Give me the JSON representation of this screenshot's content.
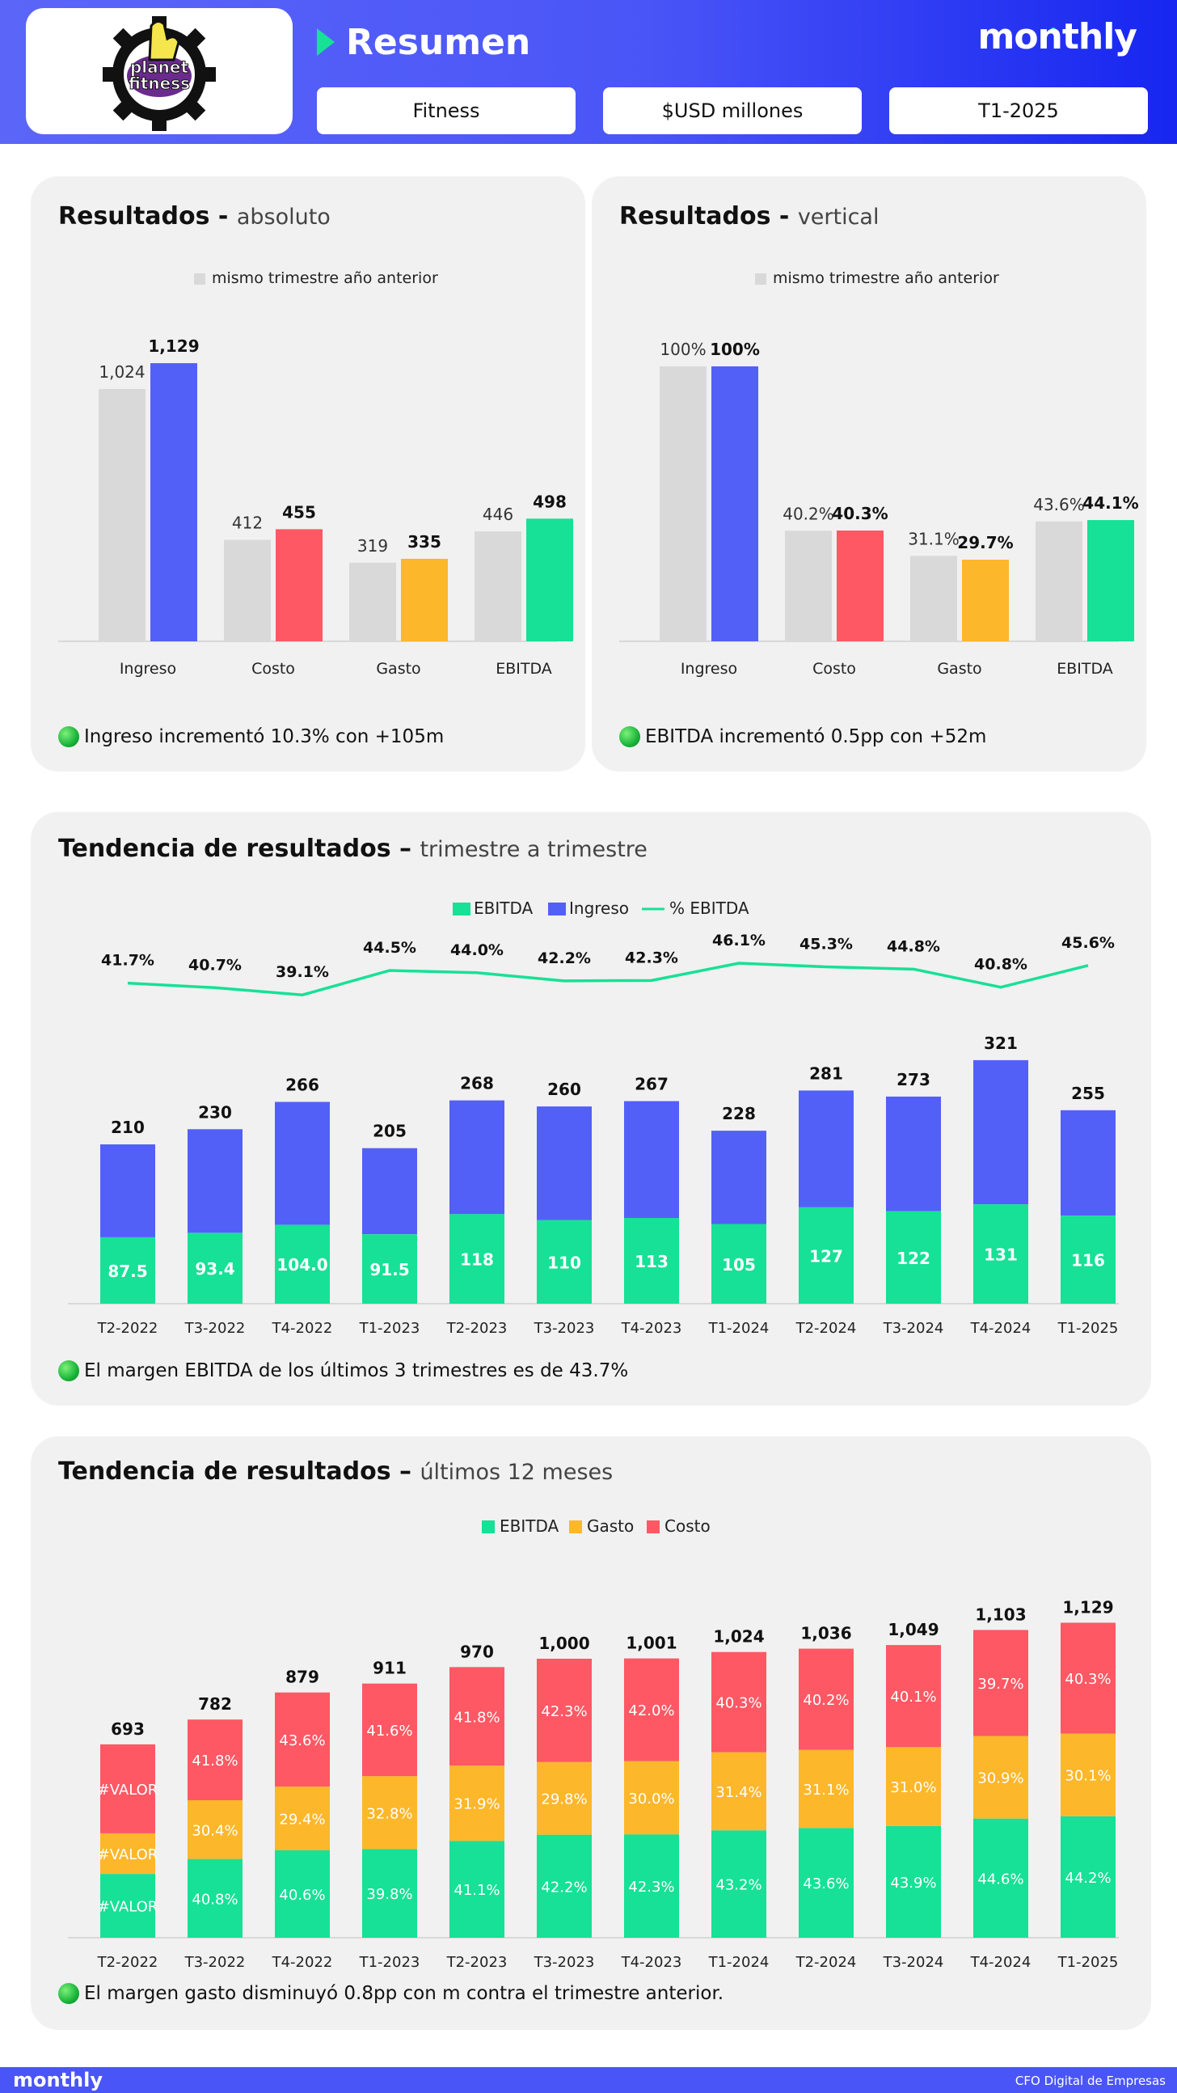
{
  "header": {
    "logo_text": "planet fitness",
    "title": "Resumen",
    "brand": "monthly",
    "chips": [
      "Fitness",
      "$USD millones",
      "T1-2025"
    ]
  },
  "colors": {
    "blue": "#5360f7",
    "green": "#16e196",
    "red": "#fd5864",
    "yellow": "#fdb72b",
    "gray": "#d9d9d9"
  },
  "card1": {
    "title_bold": "Resultados - ",
    "title_sub": "absoluto",
    "note": "Ingreso incrementó 10.3% con +105m"
  },
  "card2": {
    "title_bold": "Resultados - ",
    "title_sub": "vertical",
    "note": "EBITDA incrementó 0.5pp con +52m"
  },
  "card3": {
    "title_bold": "Tendencia de resultados – ",
    "title_sub": "trimestre a trimestre",
    "note": "El margen EBITDA de los últimos 3 trimestres es de 43.7%"
  },
  "card4": {
    "title_bold": "Tendencia de resultados – ",
    "title_sub": "últimos 12 meses",
    "note": "El margen gasto disminuyó  0.8pp con m contra el trimestre anterior."
  },
  "chart_data": [
    {
      "type": "bar",
      "title": "Resultados - absoluto",
      "legend": [
        "mismo trimestre año anterior"
      ],
      "categories": [
        "Ingreso",
        "Costo",
        "Gasto",
        "EBITDA"
      ],
      "series": [
        {
          "name": "mismo trimestre año anterior",
          "values": [
            1024,
            412,
            319,
            446
          ],
          "labels": [
            "1,024",
            "412",
            "319",
            "446"
          ]
        },
        {
          "name": "T1-2025",
          "values": [
            1129,
            455,
            335,
            498
          ],
          "labels": [
            "1,129",
            "455",
            "335",
            "498"
          ]
        }
      ],
      "ylim": [
        0,
        1250
      ]
    },
    {
      "type": "bar",
      "title": "Resultados - vertical",
      "legend": [
        "mismo trimestre año anterior"
      ],
      "categories": [
        "Ingreso",
        "Costo",
        "Gasto",
        "EBITDA"
      ],
      "series": [
        {
          "name": "mismo trimestre año anterior",
          "values": [
            100,
            40.2,
            31.1,
            43.6
          ],
          "labels": [
            "100%",
            "40.2%",
            "31.1%",
            "43.6%"
          ]
        },
        {
          "name": "T1-2025",
          "values": [
            100,
            40.3,
            29.7,
            44.1
          ],
          "labels": [
            "100%",
            "40.3%",
            "29.7%",
            "44.1%"
          ]
        }
      ],
      "ylim": [
        0,
        112
      ]
    },
    {
      "type": "bar",
      "title": "Tendencia de resultados – trimestre a trimestre",
      "legend": [
        "EBITDA",
        "Ingreso",
        "% EBITDA"
      ],
      "categories": [
        "T2-2022",
        "T3-2022",
        "T4-2022",
        "T1-2023",
        "T2-2023",
        "T3-2023",
        "T4-2023",
        "T1-2024",
        "T2-2024",
        "T3-2024",
        "T4-2024",
        "T1-2025"
      ],
      "ebitda": [
        87.5,
        93.4,
        104.0,
        91.5,
        118,
        110,
        113,
        105,
        127,
        122,
        131,
        116
      ],
      "ebitda_labels": [
        "87.5",
        "93.4",
        "104.0",
        "91.5",
        "118",
        "110",
        "113",
        "105",
        "127",
        "122",
        "131",
        "116"
      ],
      "ingreso": [
        210,
        230,
        266,
        205,
        268,
        260,
        267,
        228,
        281,
        273,
        321,
        255
      ],
      "ingreso_labels": [
        "210",
        "230",
        "266",
        "205",
        "268",
        "260",
        "267",
        "228",
        "281",
        "273",
        "321",
        "255"
      ],
      "margin": [
        41.7,
        40.7,
        39.1,
        44.5,
        44.0,
        42.2,
        42.3,
        46.1,
        45.3,
        44.8,
        40.8,
        45.6
      ],
      "margin_labels": [
        "41.7%",
        "40.7%",
        "39.1%",
        "44.5%",
        "44.0%",
        "42.2%",
        "42.3%",
        "46.1%",
        "45.3%",
        "44.8%",
        "40.8%",
        "45.6%"
      ],
      "ylim": [
        0,
        340
      ]
    },
    {
      "type": "bar",
      "title": "Tendencia de resultados – últimos 12 meses",
      "legend": [
        "EBITDA",
        "Gasto",
        "Costo"
      ],
      "categories": [
        "T2-2022",
        "T3-2022",
        "T4-2022",
        "T1-2023",
        "T2-2023",
        "T3-2023",
        "T4-2023",
        "T1-2024",
        "T2-2024",
        "T3-2024",
        "T4-2024",
        "T1-2025"
      ],
      "totals": [
        693,
        782,
        879,
        911,
        970,
        1000,
        1001,
        1024,
        1036,
        1049,
        1103,
        1129
      ],
      "total_labels": [
        "693",
        "782",
        "879",
        "911",
        "970",
        "1,000",
        "1,001",
        "1,024",
        "1,036",
        "1,049",
        "1,103",
        "1,129"
      ],
      "ebitda_pct": [
        null,
        40.8,
        40.6,
        39.8,
        41.1,
        42.2,
        42.3,
        43.2,
        43.6,
        43.9,
        44.6,
        44.2
      ],
      "gasto_pct": [
        null,
        30.4,
        29.4,
        32.8,
        31.9,
        29.8,
        30.0,
        31.4,
        31.1,
        31.0,
        30.9,
        30.1
      ],
      "costo_pct": [
        null,
        41.8,
        43.6,
        41.6,
        41.8,
        42.3,
        42.0,
        40.3,
        40.2,
        40.1,
        39.7,
        40.3
      ],
      "ebitda_labels": [
        "#VALOR",
        "40.8%",
        "40.6%",
        "39.8%",
        "41.1%",
        "42.2%",
        "42.3%",
        "43.2%",
        "43.6%",
        "43.9%",
        "44.6%",
        "44.2%"
      ],
      "gasto_labels": [
        "#VALOR",
        "30.4%",
        "29.4%",
        "32.8%",
        "31.9%",
        "29.8%",
        "30.0%",
        "31.4%",
        "31.1%",
        "31.0%",
        "30.9%",
        "30.1%"
      ],
      "costo_labels": [
        "#VALOR",
        "41.8%",
        "43.6%",
        "41.6%",
        "41.8%",
        "42.3%",
        "42.0%",
        "40.3%",
        "40.2%",
        "40.1%",
        "39.7%",
        "40.3%"
      ],
      "ylim": [
        0,
        1200
      ]
    }
  ],
  "footer": {
    "brand": "monthly",
    "right": "CFO Digital de Empresas"
  }
}
